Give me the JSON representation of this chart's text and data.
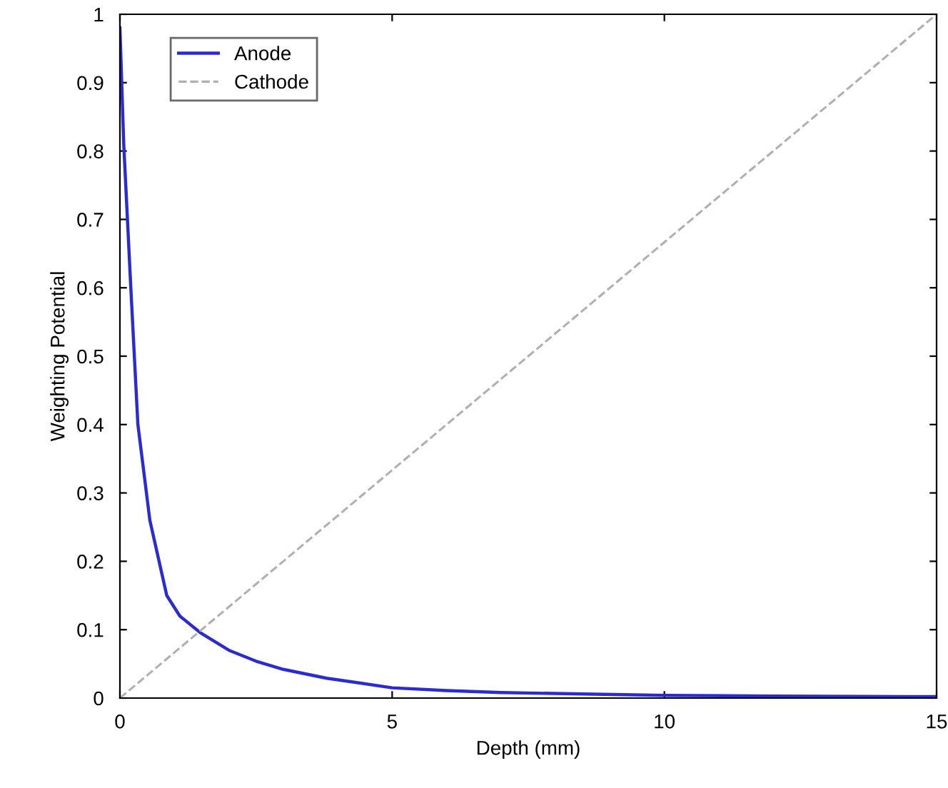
{
  "chart_data": {
    "type": "line",
    "xlabel": "Depth (mm)",
    "ylabel": "Weighting Potential",
    "xlim": [
      0,
      15
    ],
    "ylim": [
      0,
      1
    ],
    "xticks": [
      0,
      5,
      10,
      15
    ],
    "yticks": [
      0,
      0.1,
      0.2,
      0.3,
      0.4,
      0.5,
      0.6,
      0.7,
      0.8,
      0.9,
      1
    ],
    "grid": false,
    "legend": "top left",
    "series": [
      {
        "name": "Anode",
        "color": "#2b2bd0",
        "line_style": "solid",
        "x": [
          0,
          0.07,
          0.2,
          0.33,
          0.55,
          0.86,
          1.1,
          1.47,
          2,
          2.5,
          3,
          3.8,
          5,
          6,
          7,
          8.5,
          10,
          12,
          15
        ],
        "values": [
          0.98,
          0.81,
          0.6,
          0.4,
          0.26,
          0.15,
          0.12,
          0.096,
          0.07,
          0.054,
          0.042,
          0.029,
          0.015,
          0.011,
          0.008,
          0.006,
          0.004,
          0.003,
          0.002
        ]
      },
      {
        "name": "Cathode",
        "color": "#b0b0b0",
        "line_style": "dashed",
        "x": [
          0,
          15
        ],
        "values": [
          0,
          1
        ]
      }
    ]
  }
}
